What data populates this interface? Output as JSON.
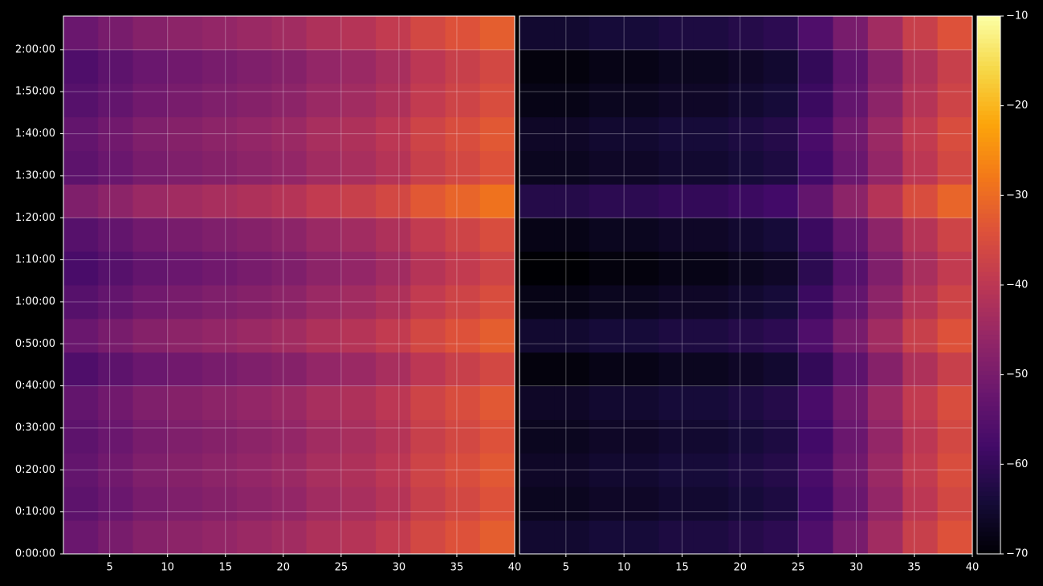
{
  "chart_data": [
    {
      "type": "heatmap",
      "x": [
        2.5,
        5.5,
        8.5,
        11.5,
        14.5,
        17.5,
        20.5,
        23.5,
        26.5,
        29.5,
        32.5,
        35.5,
        38.5
      ],
      "y": [
        240,
        720,
        1200,
        1680,
        2160,
        2640,
        3120,
        3600,
        4080,
        4560,
        5040,
        5520,
        6000,
        6480,
        6960,
        7440
      ],
      "xlim": [
        1,
        40
      ],
      "xticks": [
        5,
        10,
        15,
        20,
        25,
        30,
        35,
        40
      ],
      "ylim": [
        0,
        7680
      ],
      "yticks": [
        {
          "value": 0,
          "label": "0:00:00"
        },
        {
          "value": 600,
          "label": "0:10:00"
        },
        {
          "value": 1200,
          "label": "0:20:00"
        },
        {
          "value": 1800,
          "label": "0:30:00"
        },
        {
          "value": 2400,
          "label": "0:40:00"
        },
        {
          "value": 3000,
          "label": "0:50:00"
        },
        {
          "value": 3600,
          "label": "1:00:00"
        },
        {
          "value": 4200,
          "label": "1:10:00"
        },
        {
          "value": 4800,
          "label": "1:20:00"
        },
        {
          "value": 5400,
          "label": "1:30:00"
        },
        {
          "value": 6000,
          "label": "1:40:00"
        },
        {
          "value": 6600,
          "label": "1:50:00"
        },
        {
          "value": 7200,
          "label": "2:00:00"
        }
      ],
      "grid": true,
      "values": [
        [
          -52,
          -50,
          -48,
          -47,
          -46,
          -45,
          -44,
          -42,
          -41,
          -39,
          -36,
          -34,
          -32
        ],
        [
          -54,
          -52,
          -50,
          -49,
          -48,
          -47,
          -46,
          -44,
          -43,
          -41,
          -38,
          -36,
          -34
        ],
        [
          -53,
          -51,
          -49,
          -48,
          -47,
          -46,
          -45,
          -43,
          -42,
          -40,
          -37,
          -35,
          -33
        ],
        [
          -54,
          -52,
          -50,
          -49,
          -48,
          -47,
          -46,
          -44,
          -43,
          -41,
          -38,
          -36,
          -34
        ],
        [
          -53,
          -51,
          -49,
          -48,
          -47,
          -46,
          -45,
          -43,
          -42,
          -40,
          -37,
          -35,
          -33
        ],
        [
          -56,
          -54,
          -52,
          -51,
          -50,
          -49,
          -48,
          -46,
          -45,
          -43,
          -40,
          -38,
          -36
        ],
        [
          -52,
          -50,
          -48,
          -47,
          -46,
          -45,
          -44,
          -42,
          -41,
          -39,
          -36,
          -34,
          -32
        ],
        [
          -55,
          -53,
          -51,
          -50,
          -49,
          -48,
          -47,
          -45,
          -44,
          -42,
          -39,
          -37,
          -35
        ],
        [
          -57,
          -55,
          -53,
          -52,
          -51,
          -50,
          -49,
          -47,
          -46,
          -44,
          -41,
          -39,
          -37
        ],
        [
          -55,
          -53,
          -51,
          -50,
          -49,
          -48,
          -47,
          -45,
          -44,
          -42,
          -39,
          -37,
          -35
        ],
        [
          -49,
          -47,
          -45,
          -44,
          -43,
          -42,
          -41,
          -39,
          -38,
          -36,
          -33,
          -31,
          -29
        ],
        [
          -54,
          -52,
          -50,
          -49,
          -48,
          -47,
          -46,
          -44,
          -43,
          -41,
          -38,
          -36,
          -34
        ],
        [
          -53,
          -51,
          -49,
          -48,
          -47,
          -46,
          -45,
          -43,
          -42,
          -40,
          -37,
          -35,
          -33
        ],
        [
          -55,
          -53,
          -51,
          -50,
          -49,
          -48,
          -47,
          -45,
          -44,
          -42,
          -39,
          -37,
          -35
        ],
        [
          -56,
          -54,
          -52,
          -51,
          -50,
          -49,
          -48,
          -46,
          -45,
          -43,
          -40,
          -38,
          -36
        ],
        [
          -52,
          -50,
          -48,
          -47,
          -46,
          -45,
          -44,
          -42,
          -41,
          -39,
          -36,
          -34,
          -32
        ]
      ]
    },
    {
      "type": "heatmap",
      "x": [
        2.5,
        5.5,
        8.5,
        11.5,
        14.5,
        17.5,
        20.5,
        23.5,
        26.5,
        29.5,
        32.5,
        35.5,
        38.5
      ],
      "y": [
        240,
        720,
        1200,
        1680,
        2160,
        2640,
        3120,
        3600,
        4080,
        4560,
        5040,
        5520,
        6000,
        6480,
        6960,
        7440
      ],
      "xlim": [
        1,
        40
      ],
      "xticks": [
        5,
        10,
        15,
        20,
        25,
        30,
        35,
        40
      ],
      "ylim": [
        0,
        7680
      ],
      "sharey": true,
      "grid": true,
      "values": [
        [
          -65,
          -65,
          -64,
          -64,
          -63,
          -63,
          -62,
          -61,
          -56,
          -50,
          -44,
          -38,
          -34
        ],
        [
          -67,
          -67,
          -66,
          -66,
          -65,
          -65,
          -64,
          -63,
          -58,
          -52,
          -46,
          -40,
          -36
        ],
        [
          -66,
          -66,
          -65,
          -65,
          -64,
          -64,
          -63,
          -62,
          -57,
          -51,
          -45,
          -39,
          -35
        ],
        [
          -67,
          -67,
          -66,
          -66,
          -65,
          -65,
          -64,
          -63,
          -58,
          -52,
          -46,
          -40,
          -36
        ],
        [
          -66,
          -66,
          -65,
          -65,
          -64,
          -64,
          -63,
          -62,
          -57,
          -51,
          -45,
          -39,
          -35
        ],
        [
          -69,
          -69,
          -68,
          -68,
          -67,
          -67,
          -66,
          -65,
          -60,
          -54,
          -48,
          -42,
          -38
        ],
        [
          -65,
          -65,
          -64,
          -64,
          -63,
          -63,
          -62,
          -61,
          -56,
          -50,
          -44,
          -38,
          -34
        ],
        [
          -68,
          -68,
          -67,
          -67,
          -66,
          -66,
          -65,
          -64,
          -59,
          -53,
          -47,
          -41,
          -37
        ],
        [
          -70,
          -70,
          -69,
          -69,
          -68,
          -68,
          -67,
          -66,
          -61,
          -55,
          -49,
          -43,
          -39
        ],
        [
          -68,
          -68,
          -67,
          -67,
          -66,
          -66,
          -65,
          -64,
          -59,
          -53,
          -47,
          -41,
          -37
        ],
        [
          -62,
          -62,
          -61,
          -61,
          -60,
          -60,
          -59,
          -58,
          -53,
          -47,
          -41,
          -35,
          -31
        ],
        [
          -67,
          -67,
          -66,
          -66,
          -65,
          -65,
          -64,
          -63,
          -58,
          -52,
          -46,
          -40,
          -36
        ],
        [
          -66,
          -66,
          -65,
          -65,
          -64,
          -64,
          -63,
          -62,
          -57,
          -51,
          -45,
          -39,
          -35
        ],
        [
          -68,
          -68,
          -67,
          -67,
          -66,
          -66,
          -65,
          -64,
          -59,
          -53,
          -47,
          -41,
          -37
        ],
        [
          -69,
          -69,
          -68,
          -68,
          -67,
          -67,
          -66,
          -65,
          -60,
          -54,
          -48,
          -42,
          -38
        ],
        [
          -65,
          -65,
          -64,
          -64,
          -63,
          -63,
          -62,
          -61,
          -56,
          -50,
          -44,
          -38,
          -34
        ]
      ]
    },
    {
      "type": "colorbar",
      "colormap": "inferno",
      "lim": [
        -70,
        -10
      ],
      "ticks": [
        {
          "value": -70,
          "label": "−70"
        },
        {
          "value": -60,
          "label": "−60"
        },
        {
          "value": -50,
          "label": "−50"
        },
        {
          "value": -40,
          "label": "−40"
        },
        {
          "value": -30,
          "label": "−30"
        },
        {
          "value": -20,
          "label": "−20"
        },
        {
          "value": -10,
          "label": "−10"
        }
      ]
    }
  ]
}
